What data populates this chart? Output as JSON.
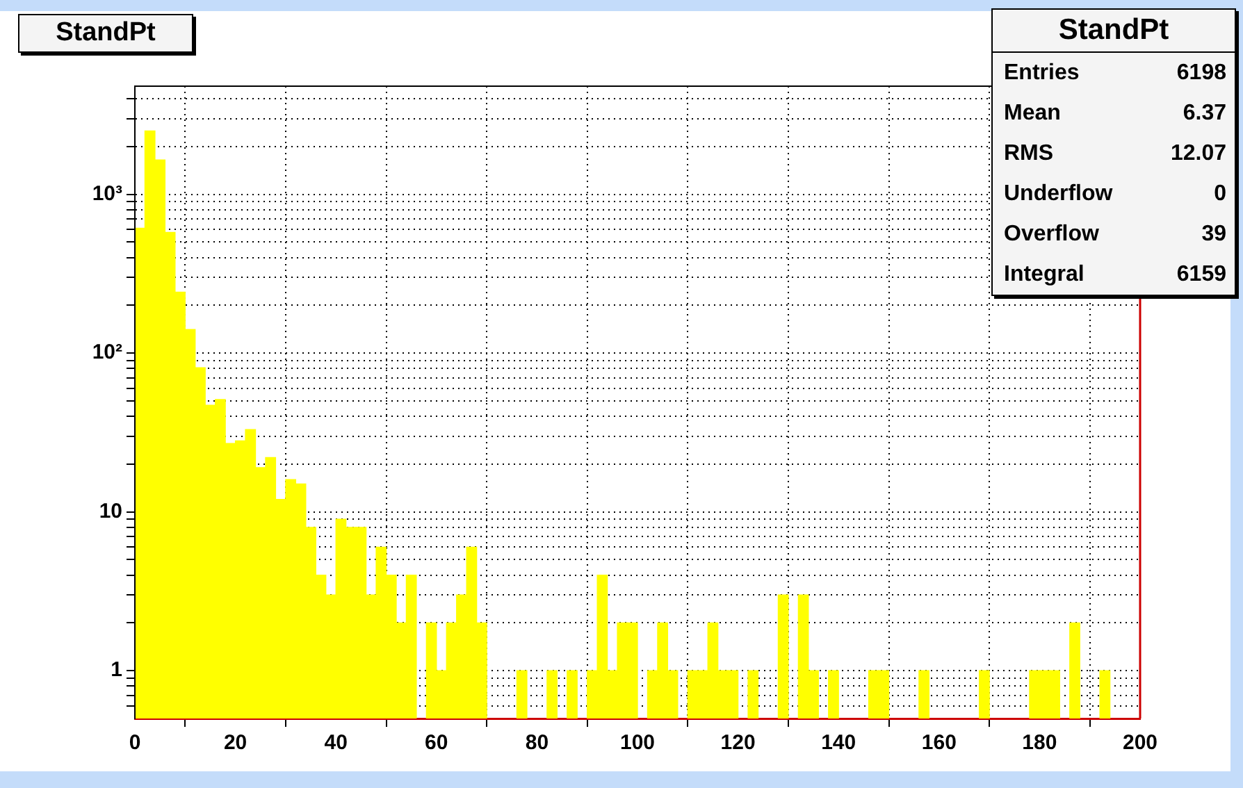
{
  "chart_data": {
    "type": "histogram",
    "title": "StandPt",
    "bins": [
      0,
      2,
      4,
      6,
      8,
      10,
      12,
      14,
      16,
      18,
      20,
      22,
      24,
      26,
      28,
      30,
      32,
      34,
      36,
      38,
      40,
      42,
      44,
      46,
      48,
      50,
      52,
      54,
      56,
      58,
      60,
      62,
      64,
      66,
      68,
      70,
      72,
      74,
      76,
      78,
      80,
      82,
      84,
      86,
      88,
      90,
      92,
      94,
      96,
      98,
      100,
      102,
      104,
      106,
      108,
      110,
      112,
      114,
      116,
      118,
      120,
      122,
      124,
      126,
      128,
      130,
      132,
      134,
      136,
      138,
      140,
      142,
      144,
      146,
      148,
      150,
      152,
      154,
      156,
      158,
      160,
      162,
      164,
      166,
      168,
      170,
      172,
      174,
      176,
      178,
      180,
      182,
      184,
      186,
      188,
      190,
      192,
      194,
      196,
      198,
      200
    ],
    "values": [
      612,
      2510,
      1645,
      576,
      242,
      141,
      81,
      47,
      51,
      27,
      28,
      33,
      19,
      22,
      12,
      16,
      15,
      8,
      4,
      3,
      9,
      8,
      8,
      3,
      6,
      4,
      2,
      4,
      null,
      2,
      1,
      2,
      3,
      6,
      2,
      null,
      null,
      null,
      1,
      null,
      null,
      1,
      null,
      1,
      null,
      1,
      4,
      1,
      2,
      2,
      null,
      1,
      2,
      1,
      null,
      1,
      1,
      2,
      1,
      1,
      null,
      1,
      null,
      null,
      3,
      null,
      3,
      1,
      null,
      1,
      null,
      null,
      null,
      1,
      1,
      null,
      null,
      null,
      1,
      null,
      null,
      null,
      null,
      null,
      1,
      null,
      null,
      null,
      null,
      1,
      1,
      1,
      null,
      2,
      null,
      null,
      1,
      null,
      null,
      null
    ],
    "color": "#ffff00",
    "xlim": [
      0,
      200
    ],
    "xticks": [
      0,
      20,
      40,
      60,
      80,
      100,
      120,
      140,
      160,
      180,
      200
    ],
    "ylim": [
      0.5,
      4800
    ],
    "yticks": [
      {
        "value": 0.6,
        "label": null
      },
      {
        "value": 0.7,
        "label": null
      },
      {
        "value": 0.8,
        "label": null
      },
      {
        "value": 0.9,
        "label": null
      },
      1,
      {
        "value": 2,
        "label": null
      },
      {
        "value": 3,
        "label": null
      },
      {
        "value": 4,
        "label": null
      },
      {
        "value": 5,
        "label": null
      },
      {
        "value": 6,
        "label": null
      },
      {
        "value": 7,
        "label": null
      },
      {
        "value": 8,
        "label": null
      },
      {
        "value": 9,
        "label": null
      },
      10,
      {
        "value": 20,
        "label": null
      },
      {
        "value": 30,
        "label": null
      },
      {
        "value": 40,
        "label": null
      },
      {
        "value": 50,
        "label": null
      },
      {
        "value": 60,
        "label": null
      },
      {
        "value": 70,
        "label": null
      },
      {
        "value": 80,
        "label": null
      },
      {
        "value": 90,
        "label": null
      },
      {
        "value": 100,
        "label": "10²"
      },
      {
        "value": 200,
        "label": null
      },
      {
        "value": 300,
        "label": null
      },
      {
        "value": 400,
        "label": null
      },
      {
        "value": 500,
        "label": null
      },
      {
        "value": 600,
        "label": null
      },
      {
        "value": 700,
        "label": null
      },
      {
        "value": 800,
        "label": null
      },
      {
        "value": 900,
        "label": null
      },
      {
        "value": 1000,
        "label": "10³"
      },
      {
        "value": 2000,
        "label": null
      },
      {
        "value": 3000,
        "label": null
      },
      {
        "value": 4000,
        "label": null
      }
    ],
    "log": true,
    "grid": true,
    "annotations": [
      "Entries 6198",
      "Mean 6.37",
      "RMS 12.07",
      "Underflow 0",
      "Overflow 39",
      "Integral 6159"
    ]
  }
}
